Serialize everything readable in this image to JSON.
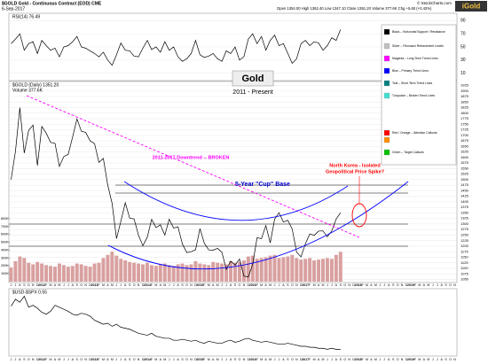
{
  "header": {
    "symbol": "$GOLD Gold - Continuous Contract (EOD) CME",
    "date": "6-Sep-2017",
    "quote": "Open 1354.00 High 1362.40 Low 1347.10 Close 1351.20 Volume 377.6K Chg +5.60 (+0.42%)",
    "source": "© StockCharts.com",
    "logo": "iGold"
  },
  "legend_panel": {
    "items": [
      {
        "label": "Black – Horizontal Support / Resistance",
        "colors": [
          "#000000"
        ]
      },
      {
        "label": "Silver – Fibonacci Retracement Levels",
        "colors": [
          "#c0c0c0"
        ]
      },
      {
        "label": "Magenta – Long Term Trend Lines",
        "colors": [
          "#ff00ff"
        ]
      },
      {
        "label": "Blue – Primary Trend Lines",
        "colors": [
          "#0000ff"
        ]
      },
      {
        "label": "Teal – Short Term Trend Lines",
        "colors": [
          "#008080"
        ]
      },
      {
        "label": "Turquoise – Broken Trend Lines",
        "colors": [
          "#40e0d0"
        ]
      },
      {
        "label": "Red / Orange – Attention Callouts",
        "colors": [
          "#ff0000",
          "#ff8c00"
        ]
      },
      {
        "label": "Green – Target Callouts",
        "colors": [
          "#00c000"
        ]
      }
    ]
  },
  "chart_data": [
    {
      "type": "line",
      "label": "RSI(14) 76.49",
      "color": "#000000",
      "categories": [
        "J",
        "J",
        "A",
        "S",
        "O",
        "N",
        "D",
        "2012",
        "F",
        "M",
        "A",
        "M",
        "J",
        "J",
        "A",
        "S",
        "O",
        "N",
        "D",
        "2013",
        "F",
        "M",
        "A",
        "M",
        "J",
        "J",
        "A",
        "S",
        "O",
        "N",
        "D",
        "2014",
        "F",
        "M",
        "A",
        "M",
        "J",
        "J",
        "A",
        "S",
        "O",
        "N",
        "D",
        "2015",
        "F",
        "M",
        "A",
        "M",
        "J",
        "J",
        "A",
        "S",
        "O",
        "N",
        "D",
        "2016",
        "F",
        "M",
        "A",
        "M",
        "J",
        "J",
        "A",
        "S",
        "O",
        "N",
        "D",
        "2017",
        "F",
        "M",
        "A",
        "M",
        "J",
        "J",
        "A",
        "S",
        "O",
        "N",
        "D",
        "2018",
        "F",
        "M",
        "A",
        "M",
        "J",
        "J",
        "A",
        "S",
        "O",
        "N",
        "D",
        "2019",
        "F",
        "M",
        "A",
        "M",
        "J",
        "J",
        "A",
        "S",
        "O",
        "N"
      ],
      "values": [
        55,
        62,
        70,
        45,
        55,
        58,
        40,
        60,
        52,
        45,
        48,
        35,
        50,
        52,
        58,
        66,
        50,
        48,
        44,
        40,
        35,
        42,
        30,
        22,
        38,
        56,
        45,
        44,
        36,
        35,
        48,
        60,
        46,
        50,
        42,
        58,
        45,
        50,
        35,
        28,
        32,
        40,
        60,
        38,
        34,
        36,
        40,
        32,
        28,
        44,
        40,
        50,
        30,
        35,
        62,
        70,
        55,
        66,
        45,
        60,
        68,
        52,
        55,
        40,
        25,
        32,
        55,
        60,
        52,
        58,
        56,
        45,
        52,
        64,
        60,
        76.49,
        null,
        null,
        null,
        null,
        null,
        null,
        null,
        null,
        null,
        null,
        null,
        null,
        null,
        null,
        null,
        null,
        null,
        null,
        null,
        null,
        null,
        null,
        null,
        null,
        null,
        null
      ],
      "ylim": [
        0,
        100
      ],
      "yticks": [
        10,
        30,
        50,
        70,
        90
      ]
    },
    {
      "type": "line",
      "title": "Gold",
      "subtitle": "2011 - Present",
      "label": "$GOLD (Daily) 1351.20",
      "volume_label": "Volume 377.6K",
      "color": "#000000",
      "values": [
        1500,
        1628,
        1825,
        1620,
        1722,
        1746,
        1564,
        1740,
        1710,
        1668,
        1664,
        1560,
        1604,
        1614,
        1692,
        1774,
        1719,
        1713,
        1675,
        1663,
        1578,
        1596,
        1476,
        1393,
        1234,
        1313,
        1396,
        1327,
        1323,
        1250,
        1202,
        1240,
        1321,
        1284,
        1296,
        1250,
        1322,
        1282,
        1287,
        1210,
        1171,
        1175,
        1184,
        1279,
        1213,
        1183,
        1182,
        1190,
        1172,
        1095,
        1132,
        1115,
        1142,
        1065,
        1061,
        1118,
        1238,
        1234,
        1293,
        1215,
        1322,
        1351,
        1309,
        1317,
        1277,
        1173,
        1152,
        1211,
        1255,
        1249,
        1268,
        1269,
        1242,
        1269,
        1322,
        1351,
        null,
        null,
        null,
        null,
        null,
        null,
        null,
        null,
        null,
        null,
        null,
        null,
        null,
        null,
        null,
        null,
        null,
        null,
        null,
        null,
        null,
        null,
        null,
        null,
        null,
        null
      ],
      "ylim": [
        1040,
        1935
      ],
      "yticks": [
        1050,
        1075,
        1100,
        1125,
        1150,
        1175,
        1200,
        1225,
        1250,
        1275,
        1300,
        1325,
        1350,
        1375,
        1400,
        1425,
        1450,
        1475,
        1500,
        1525,
        1550,
        1575,
        1600,
        1625,
        1650,
        1675,
        1700,
        1725,
        1750,
        1775,
        1800,
        1825,
        1850,
        1875,
        1900,
        1925
      ],
      "volume": {
        "color": "#d9a0a0",
        "values": [
          180000,
          260000,
          320000,
          300000,
          240000,
          220000,
          250000,
          230000,
          210000,
          200000,
          190000,
          230000,
          210000,
          190000,
          200000,
          230000,
          220000,
          200000,
          190000,
          230000,
          240000,
          300000,
          340000,
          380000,
          330000,
          290000,
          270000,
          250000,
          240000,
          230000,
          220000,
          240000,
          210000,
          200000,
          220000,
          230000,
          210000,
          200000,
          220000,
          230000,
          210000,
          220000,
          260000,
          230000,
          220000,
          210000,
          250000,
          240000,
          230000,
          220000,
          260000,
          240000,
          250000,
          270000,
          320000,
          330000,
          290000,
          300000,
          310000,
          330000,
          340000,
          300000,
          310000,
          320000,
          340000,
          300000,
          280000,
          290000,
          300000,
          270000,
          280000,
          290000,
          300000,
          290000,
          340000,
          377600,
          null,
          null,
          null,
          null,
          null,
          null,
          null,
          null,
          null,
          null,
          null,
          null,
          null,
          null,
          null,
          null,
          null,
          null,
          null,
          null,
          null,
          null,
          null,
          null,
          null,
          null
        ]
      },
      "y2lim": [
        0,
        900000
      ],
      "y2ticks": [
        {
          "value": 100000,
          "label": "100K"
        },
        {
          "value": 200000,
          "label": "200K"
        },
        {
          "value": 300000,
          "label": "300K"
        },
        {
          "value": 400000,
          "label": "400K"
        },
        {
          "value": 500000,
          "label": "500K"
        },
        {
          "value": 600000,
          "label": "600K"
        },
        {
          "value": 700000,
          "label": "700K"
        },
        {
          "value": 800000,
          "label": "800K"
        }
      ],
      "annotations": [
        "2011-2017 Downtrend -- BROKEN",
        "5-Year \"Cup\" Base",
        "North Korea - Isolated",
        "Geopolitical Price Spike?"
      ]
    },
    {
      "type": "line",
      "label": "$USD-$SPX 0.55",
      "color": "#000000",
      "values": [
        0.98,
        1.05,
        1.02,
        1.08,
        0.97,
        0.99,
        0.96,
        0.92,
        0.9,
        0.93,
        0.99,
        0.97,
        0.95,
        0.93,
        0.9,
        0.89,
        0.91,
        0.9,
        0.88,
        0.84,
        0.82,
        0.8,
        0.81,
        0.78,
        0.8,
        0.77,
        0.76,
        0.75,
        0.73,
        0.71,
        0.7,
        0.69,
        0.71,
        0.68,
        0.67,
        0.66,
        0.66,
        0.64,
        0.64,
        0.65,
        0.64,
        0.63,
        0.64,
        0.62,
        0.61,
        0.63,
        0.62,
        0.61,
        0.61,
        0.63,
        0.64,
        0.62,
        0.63,
        0.65,
        0.66,
        0.64,
        0.63,
        0.62,
        0.63,
        0.62,
        0.61,
        0.6,
        0.6,
        0.61,
        0.6,
        0.59,
        0.58,
        0.58,
        0.57,
        0.57,
        0.56,
        0.56,
        0.55,
        0.56,
        0.55,
        0.55,
        null,
        null,
        null,
        null,
        null,
        null,
        null,
        null,
        null,
        null,
        null,
        null,
        null,
        null,
        null,
        null,
        null,
        null,
        null,
        null,
        null,
        null,
        null,
        null,
        null,
        null
      ],
      "ylim": [
        0.5,
        1.12
      ]
    }
  ]
}
